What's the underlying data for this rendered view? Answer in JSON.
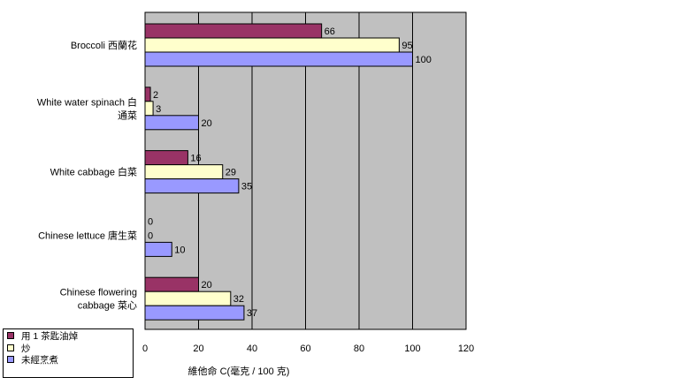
{
  "chart_data": {
    "type": "bar",
    "orientation": "horizontal",
    "categories": [
      "Broccoli 西蘭花",
      "White water spinach 白通菜",
      "White cabbage 白菜",
      "Chinese lettuce 唐生菜",
      "Chinese flowering cabbage 菜心"
    ],
    "category_lines": [
      [
        "Broccoli 西蘭花"
      ],
      [
        "White water spinach 白",
        "通菜"
      ],
      [
        "White cabbage 白菜"
      ],
      [
        "Chinese lettuce 唐生菜"
      ],
      [
        "Chinese flowering",
        "cabbage 菜心"
      ]
    ],
    "series": [
      {
        "name": "用 1 茶匙油焯",
        "values": [
          66,
          2,
          16,
          0,
          20
        ],
        "color": "#993366"
      },
      {
        "name": "炒",
        "values": [
          95,
          3,
          29,
          0,
          32
        ],
        "color": "#ffffcc"
      },
      {
        "name": "未經烹煮",
        "values": [
          100,
          20,
          35,
          10,
          37
        ],
        "color": "#9999ff"
      }
    ],
    "xlabel": "維他命 C(毫克 / 100 克)",
    "xlim": [
      0,
      120
    ],
    "xticks": [
      0,
      20,
      40,
      60,
      80,
      100,
      120
    ],
    "grid": true,
    "plot_background": "#c0c0c0",
    "legend_position": "bottom-left"
  }
}
